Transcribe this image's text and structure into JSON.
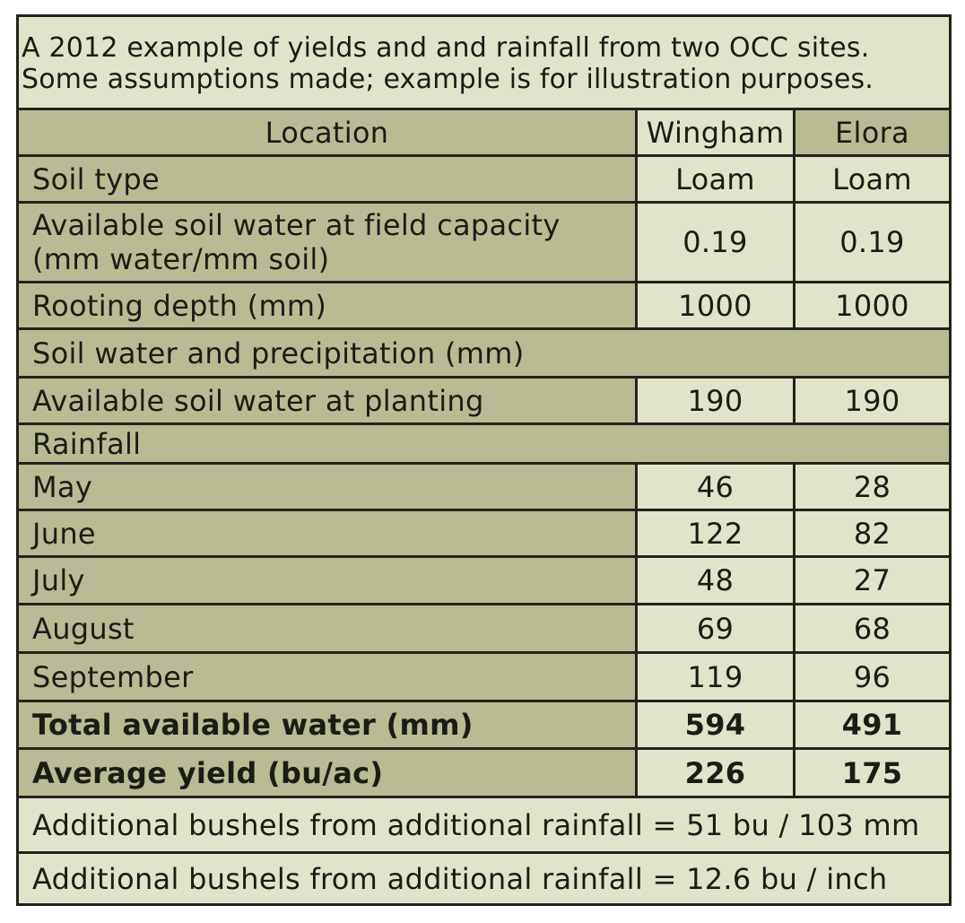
{
  "title": {
    "line1": "A 2012 example of yields and and rainfall from two OCC sites.",
    "line2": "Some assumptions made; example is for illustration purposes."
  },
  "header": {
    "label": "Location",
    "col1": "Wingham",
    "col2": "Elora"
  },
  "rows": {
    "soil_type": {
      "label": "Soil type",
      "wingham": "Loam",
      "elora": "Loam"
    },
    "field_capacity": {
      "label_line1": "Available soil water at field capacity",
      "label_line2": "(mm water/mm soil)",
      "wingham": "0.19",
      "elora": "0.19"
    },
    "rooting_depth": {
      "label": "Rooting depth (mm)",
      "wingham": "1000",
      "elora": "1000"
    },
    "section_soil_water": {
      "label": "Soil water and precipitation (mm)"
    },
    "planting": {
      "label": "Available soil water at planting",
      "wingham": "190",
      "elora": "190"
    },
    "section_rainfall": {
      "label": "Rainfall"
    },
    "may": {
      "label": "May",
      "wingham": "46",
      "elora": "28"
    },
    "june": {
      "label": "June",
      "wingham": "122",
      "elora": "82"
    },
    "july": {
      "label": "July",
      "wingham": "48",
      "elora": "27"
    },
    "august": {
      "label": "August",
      "wingham": "69",
      "elora": "68"
    },
    "september": {
      "label": "September",
      "wingham": "119",
      "elora": "96"
    },
    "total_water": {
      "label": "Total available water (mm)",
      "wingham": "594",
      "elora": "491"
    },
    "avg_yield": {
      "label": "Average yield (bu/ac)",
      "wingham": "226",
      "elora": "175"
    }
  },
  "footer": {
    "line1": "Additional bushels from additional rainfall = 51 bu / 103 mm",
    "line2": "Additional bushels from additional rainfall = 12.6 bu / inch"
  }
}
